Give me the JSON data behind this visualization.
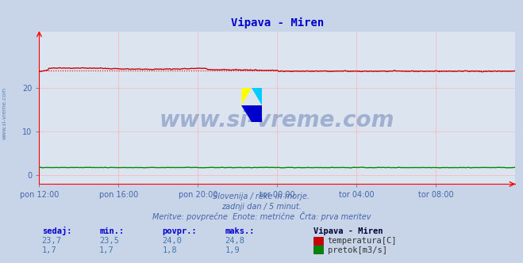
{
  "title": "Vipava - Miren",
  "title_color": "#0000cc",
  "bg_color": "#c8d4e8",
  "plot_bg_color": "#dce4f0",
  "grid_color": "#ffaaaa",
  "axis_color": "#ff0000",
  "watermark_text": "www.si-vreme.com",
  "watermark_color": "#1a3a8a",
  "watermark_alpha": 0.3,
  "xlabel_color": "#4466aa",
  "ylabel_color": "#4466aa",
  "xtick_labels": [
    "pon 12:00",
    "pon 16:00",
    "pon 20:00",
    "tor 00:00",
    "tor 04:00",
    "tor 08:00"
  ],
  "xtick_positions": [
    0,
    48,
    96,
    144,
    192,
    240
  ],
  "ytick_positions": [
    0,
    10,
    20
  ],
  "ylim": [
    -2,
    33
  ],
  "xlim": [
    0,
    288
  ],
  "n_points": 289,
  "temp_min": 23.5,
  "temp_max": 24.8,
  "temp_avg": 24.0,
  "temp_current": 23.7,
  "flow_min": 1.7,
  "flow_max": 1.9,
  "flow_avg": 1.8,
  "flow_current": 1.7,
  "temp_color": "#cc0000",
  "temp_avg_color": "#cc0000",
  "flow_color": "#008800",
  "subtitle1": "Slovenija / reke in morje.",
  "subtitle2": "zadnji dan / 5 minut.",
  "subtitle3": "Meritve: povprečne  Enote: metrične  Črta: prva meritev",
  "subtitle_color": "#4466aa",
  "table_header": [
    "sedaj:",
    "min.:",
    "povpr.:",
    "maks.:"
  ],
  "table_header_color": "#0000cc",
  "table_values_temp": [
    "23,7",
    "23,5",
    "24,0",
    "24,8"
  ],
  "table_values_flow": [
    "1,7",
    "1,7",
    "1,8",
    "1,9"
  ],
  "table_color": "#4477aa",
  "legend_title": "Vipava - Miren",
  "legend_title_color": "#000033",
  "legend_label1": "temperatura[C]",
  "legend_label2": "pretok[m3/s]",
  "legend_color": "#333333",
  "left_label": "www.si-vreme.com",
  "left_label_color": "#4477aa"
}
